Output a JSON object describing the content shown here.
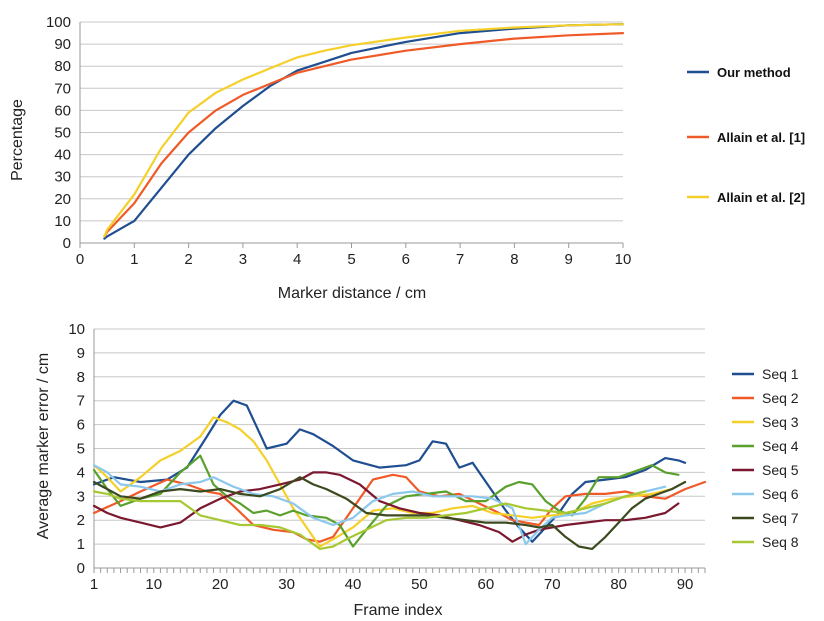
{
  "charts": [
    {
      "type": "line",
      "xlabel": "Marker distance / cm",
      "ylabel": "Percentage",
      "xlim": [
        0,
        10
      ],
      "ylim": [
        0,
        100
      ],
      "xticks": [
        0,
        1,
        2,
        3,
        4,
        5,
        6,
        7,
        8,
        9,
        10
      ],
      "yticks": [
        0,
        10,
        20,
        30,
        40,
        50,
        60,
        70,
        80,
        90,
        100
      ],
      "grid": "horizontal",
      "legend_position": "right",
      "series": [
        {
          "name": "Our method",
          "color": "#1f4e91",
          "x": [
            0.45,
            0.5,
            1,
            1.5,
            2,
            2.5,
            3,
            3.5,
            4,
            4.5,
            5,
            6,
            7,
            8,
            9,
            10
          ],
          "y": [
            2,
            3,
            10,
            25,
            40,
            52,
            62,
            71,
            78,
            82,
            86,
            91,
            95,
            97,
            98.5,
            99
          ]
        },
        {
          "name": "Allain et al. [1]",
          "color": "#f05a28",
          "x": [
            0.45,
            0.5,
            1,
            1.5,
            2,
            2.5,
            3,
            3.5,
            4,
            4.5,
            5,
            6,
            7,
            8,
            9,
            10
          ],
          "y": [
            3,
            5,
            18,
            36,
            50,
            60,
            67,
            72,
            77,
            80,
            83,
            87,
            90,
            92.5,
            94,
            95
          ]
        },
        {
          "name": "Allain et al. [2]",
          "color": "#f5d02a",
          "x": [
            0.45,
            0.5,
            1,
            1.5,
            2,
            2.5,
            3,
            3.5,
            4,
            4.5,
            5,
            6,
            7,
            8,
            9,
            10
          ],
          "y": [
            3,
            6,
            22,
            43,
            59,
            68,
            74,
            79,
            84,
            87,
            89.5,
            93,
            96,
            97.5,
            98.5,
            99
          ]
        }
      ]
    },
    {
      "type": "line",
      "xlabel": "Frame index",
      "ylabel": "Average marker error / cm",
      "xlim": [
        1,
        93
      ],
      "ylim": [
        0,
        10
      ],
      "xticks": [
        1,
        10,
        20,
        30,
        40,
        50,
        60,
        70,
        80,
        90
      ],
      "yticks": [
        0,
        1,
        2,
        3,
        4,
        5,
        6,
        7,
        8,
        9,
        10
      ],
      "grid": "horizontal",
      "legend_position": "right",
      "series": [
        {
          "name": "Seq 1",
          "color": "#1f4e91",
          "x": [
            1,
            4,
            8,
            12,
            15,
            18,
            20,
            22,
            24,
            27,
            30,
            32,
            34,
            37,
            40,
            44,
            48,
            50,
            52,
            54,
            56,
            58,
            61,
            63,
            65,
            67,
            69,
            71,
            73,
            75,
            78,
            81,
            84,
            87,
            89,
            90
          ],
          "y": [
            3.5,
            3.8,
            3.6,
            3.7,
            4.2,
            5.5,
            6.4,
            7,
            6.8,
            5,
            5.2,
            5.8,
            5.6,
            5.1,
            4.5,
            4.2,
            4.3,
            4.5,
            5.3,
            5.2,
            4.2,
            4.4,
            3.2,
            2.4,
            1.7,
            1.1,
            1.7,
            2.3,
            3.1,
            3.6,
            3.7,
            3.8,
            4.1,
            4.6,
            4.5,
            4.4
          ]
        },
        {
          "name": "Seq 2",
          "color": "#f05a28",
          "x": [
            1,
            5,
            8,
            12,
            15,
            18,
            20,
            22,
            25,
            28,
            31,
            33,
            35,
            37,
            40,
            43,
            46,
            48,
            50,
            53,
            56,
            59,
            62,
            64,
            66,
            68,
            70,
            72,
            75,
            78,
            81,
            84,
            87,
            90,
            93
          ],
          "y": [
            2.3,
            2.8,
            3.2,
            3.7,
            3.5,
            3.2,
            3.1,
            2.6,
            1.8,
            1.6,
            1.5,
            1.2,
            1.1,
            1.3,
            2.5,
            3.7,
            3.9,
            3.8,
            3.2,
            3,
            3.1,
            2.7,
            2.3,
            2,
            1.9,
            1.8,
            2.5,
            3,
            3.1,
            3.1,
            3.2,
            3,
            2.9,
            3.3,
            3.6
          ]
        },
        {
          "name": "Seq 3",
          "color": "#f5d02a",
          "x": [
            1,
            3,
            5,
            8,
            11,
            14,
            17,
            19,
            21,
            23,
            25,
            27,
            29,
            31,
            33,
            35,
            37,
            40,
            43,
            46,
            49,
            52,
            55,
            58,
            61,
            64,
            67,
            70,
            73,
            76,
            79,
            82,
            85,
            88
          ],
          "y": [
            4.3,
            3.8,
            3.2,
            3.8,
            4.5,
            4.9,
            5.5,
            6.3,
            6.1,
            5.8,
            5.3,
            4.5,
            3.5,
            2.5,
            1.7,
            0.9,
            1.2,
            1.7,
            2.4,
            2.5,
            2.3,
            2.3,
            2.5,
            2.6,
            2.3,
            2.2,
            2.1,
            2.2,
            2.3,
            2.7,
            2.9,
            3,
            3.1,
            3.3
          ]
        },
        {
          "name": "Seq 4",
          "color": "#5aa02c",
          "x": [
            1,
            3,
            5,
            8,
            11,
            14,
            17,
            19,
            21,
            23,
            25,
            27,
            29,
            31,
            33,
            36,
            38,
            40,
            42,
            45,
            48,
            51,
            54,
            57,
            60,
            63,
            65,
            67,
            69,
            71,
            73,
            75,
            77,
            80,
            83,
            85,
            87,
            89
          ],
          "y": [
            4.1,
            3.3,
            2.6,
            2.9,
            3.1,
            4,
            4.7,
            3.5,
            3,
            2.7,
            2.3,
            2.4,
            2.2,
            2.4,
            2.2,
            2.1,
            1.8,
            0.9,
            1.6,
            2.6,
            3,
            3.1,
            3.2,
            2.8,
            2.8,
            3.4,
            3.6,
            3.5,
            2.8,
            2.4,
            2.2,
            2.9,
            3.8,
            3.8,
            4.1,
            4.3,
            4,
            3.9
          ]
        },
        {
          "name": "Seq 5",
          "color": "#7b1830",
          "x": [
            1,
            3,
            5,
            8,
            11,
            14,
            17,
            20,
            23,
            26,
            29,
            32,
            34,
            36,
            38,
            41,
            44,
            47,
            50,
            53,
            56,
            59,
            62,
            64,
            66,
            68,
            70,
            72,
            75,
            78,
            81,
            84,
            87,
            89
          ],
          "y": [
            2.6,
            2.3,
            2.1,
            1.9,
            1.7,
            1.9,
            2.5,
            2.9,
            3.2,
            3.3,
            3.5,
            3.7,
            4,
            4,
            3.9,
            3.5,
            2.8,
            2.5,
            2.3,
            2.2,
            2,
            1.8,
            1.5,
            1.1,
            1.4,
            1.6,
            1.7,
            1.8,
            1.9,
            2,
            2,
            2.1,
            2.3,
            2.7
          ]
        },
        {
          "name": "Seq 6",
          "color": "#8cc8ec",
          "x": [
            1,
            3,
            5,
            8,
            11,
            14,
            17,
            19,
            22,
            25,
            28,
            31,
            34,
            37,
            40,
            43,
            46,
            49,
            52,
            55,
            58,
            61,
            64,
            66,
            68,
            70,
            72,
            75,
            78,
            81,
            84,
            87
          ],
          "y": [
            4.3,
            4,
            3.5,
            3.4,
            3.2,
            3.5,
            3.6,
            3.8,
            3.4,
            3.1,
            3,
            2.7,
            2.1,
            1.8,
            2.1,
            2.8,
            3.1,
            3.2,
            3,
            3,
            3,
            2.9,
            2.5,
            1,
            1.6,
            2.1,
            2.2,
            2.3,
            2.7,
            3,
            3.2,
            3.4
          ]
        },
        {
          "name": "Seq 7",
          "color": "#3c4a1f",
          "x": [
            1,
            3,
            5,
            8,
            11,
            14,
            17,
            20,
            23,
            26,
            29,
            32,
            34,
            36,
            39,
            42,
            45,
            48,
            51,
            54,
            57,
            60,
            63,
            66,
            68,
            70,
            72,
            74,
            76,
            78,
            80,
            82,
            84,
            86,
            88,
            90
          ],
          "y": [
            3.6,
            3.3,
            3,
            2.9,
            3.2,
            3.3,
            3.2,
            3.3,
            3.1,
            3,
            3.3,
            3.8,
            3.5,
            3.3,
            2.9,
            2.3,
            2.2,
            2.2,
            2.2,
            2.1,
            2,
            1.9,
            1.9,
            1.8,
            1.7,
            1.8,
            1.3,
            0.9,
            0.8,
            1.3,
            1.9,
            2.5,
            2.9,
            3.1,
            3.3,
            3.6
          ]
        },
        {
          "name": "Seq 8",
          "color": "#a6c832",
          "x": [
            1,
            3,
            5,
            8,
            11,
            14,
            17,
            20,
            23,
            26,
            29,
            32,
            35,
            37,
            39,
            42,
            45,
            48,
            51,
            54,
            57,
            60,
            63,
            66,
            69,
            72,
            75,
            78,
            81,
            84
          ],
          "y": [
            3.2,
            3.1,
            2.9,
            2.8,
            2.8,
            2.8,
            2.2,
            2,
            1.8,
            1.8,
            1.7,
            1.4,
            0.8,
            0.9,
            1.2,
            1.6,
            2,
            2.1,
            2.1,
            2.2,
            2.3,
            2.5,
            2.7,
            2.5,
            2.4,
            2.3,
            2.5,
            2.7,
            3,
            3.2
          ]
        }
      ]
    }
  ]
}
